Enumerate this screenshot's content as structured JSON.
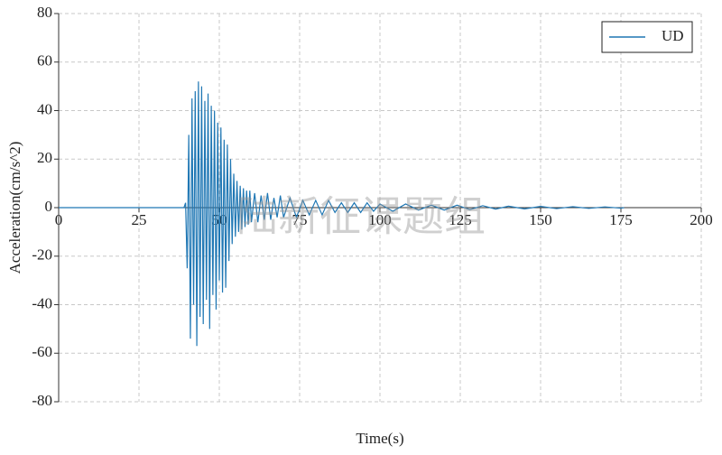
{
  "chart_data": {
    "type": "line",
    "x_label": "Time(s)",
    "y_label": "Acceleration(cm/s^2)",
    "watermark": "陆新征课题组",
    "x": [
      0,
      20,
      39,
      39.5,
      40,
      40.5,
      41,
      41.5,
      42,
      42.5,
      43,
      43.5,
      44,
      44.5,
      45,
      45.5,
      46,
      46.5,
      47,
      47.5,
      48,
      48.5,
      49,
      49.5,
      50,
      50.5,
      51,
      51.5,
      52,
      52.5,
      53,
      53.5,
      54,
      54.5,
      55,
      55.5,
      56,
      56.5,
      57,
      57.5,
      58,
      58.5,
      59,
      59.5,
      60,
      61,
      62,
      63,
      64,
      65,
      66,
      67,
      68,
      69,
      70,
      72,
      74,
      76,
      78,
      80,
      82,
      84,
      86,
      88,
      90,
      92,
      94,
      96,
      98,
      100,
      104,
      108,
      112,
      116,
      120,
      124,
      128,
      132,
      136,
      140,
      145,
      150,
      155,
      160,
      165,
      170,
      175,
      176
    ],
    "series": [
      {
        "name": "UD",
        "color": "#1f77b4",
        "values": [
          0,
          0,
          0,
          2,
          -25,
          30,
          -54,
          45,
          -40,
          48,
          -57,
          52,
          -45,
          50,
          -48,
          44,
          -38,
          47,
          -50,
          42,
          -36,
          40,
          -42,
          35,
          -30,
          33,
          -35,
          28,
          -33,
          26,
          -22,
          20,
          -15,
          14,
          -12,
          11,
          -10,
          9,
          -9,
          8,
          -8,
          7,
          -7,
          7,
          -6,
          6,
          -6,
          5,
          -5,
          6,
          -5,
          4,
          -4,
          5,
          -4,
          4,
          -4,
          3,
          -3,
          3,
          -3,
          3,
          -2,
          2,
          -2,
          2,
          -2,
          2,
          -1.5,
          1.5,
          -1.5,
          1.5,
          -1,
          1,
          -1,
          1,
          -0.8,
          0.8,
          -0.6,
          0.6,
          -0.5,
          0.5,
          -0.4,
          0.4,
          -0.3,
          0.3,
          -0.2,
          0
        ]
      }
    ],
    "xlim": [
      0,
      200
    ],
    "xticks": [
      0,
      25,
      50,
      75,
      100,
      125,
      150,
      175,
      200
    ],
    "ylim": [
      -80,
      80
    ],
    "yticks": [
      -80,
      -60,
      -40,
      -20,
      0,
      20,
      40,
      60,
      80
    ],
    "grid": true,
    "legend": "upper right"
  }
}
